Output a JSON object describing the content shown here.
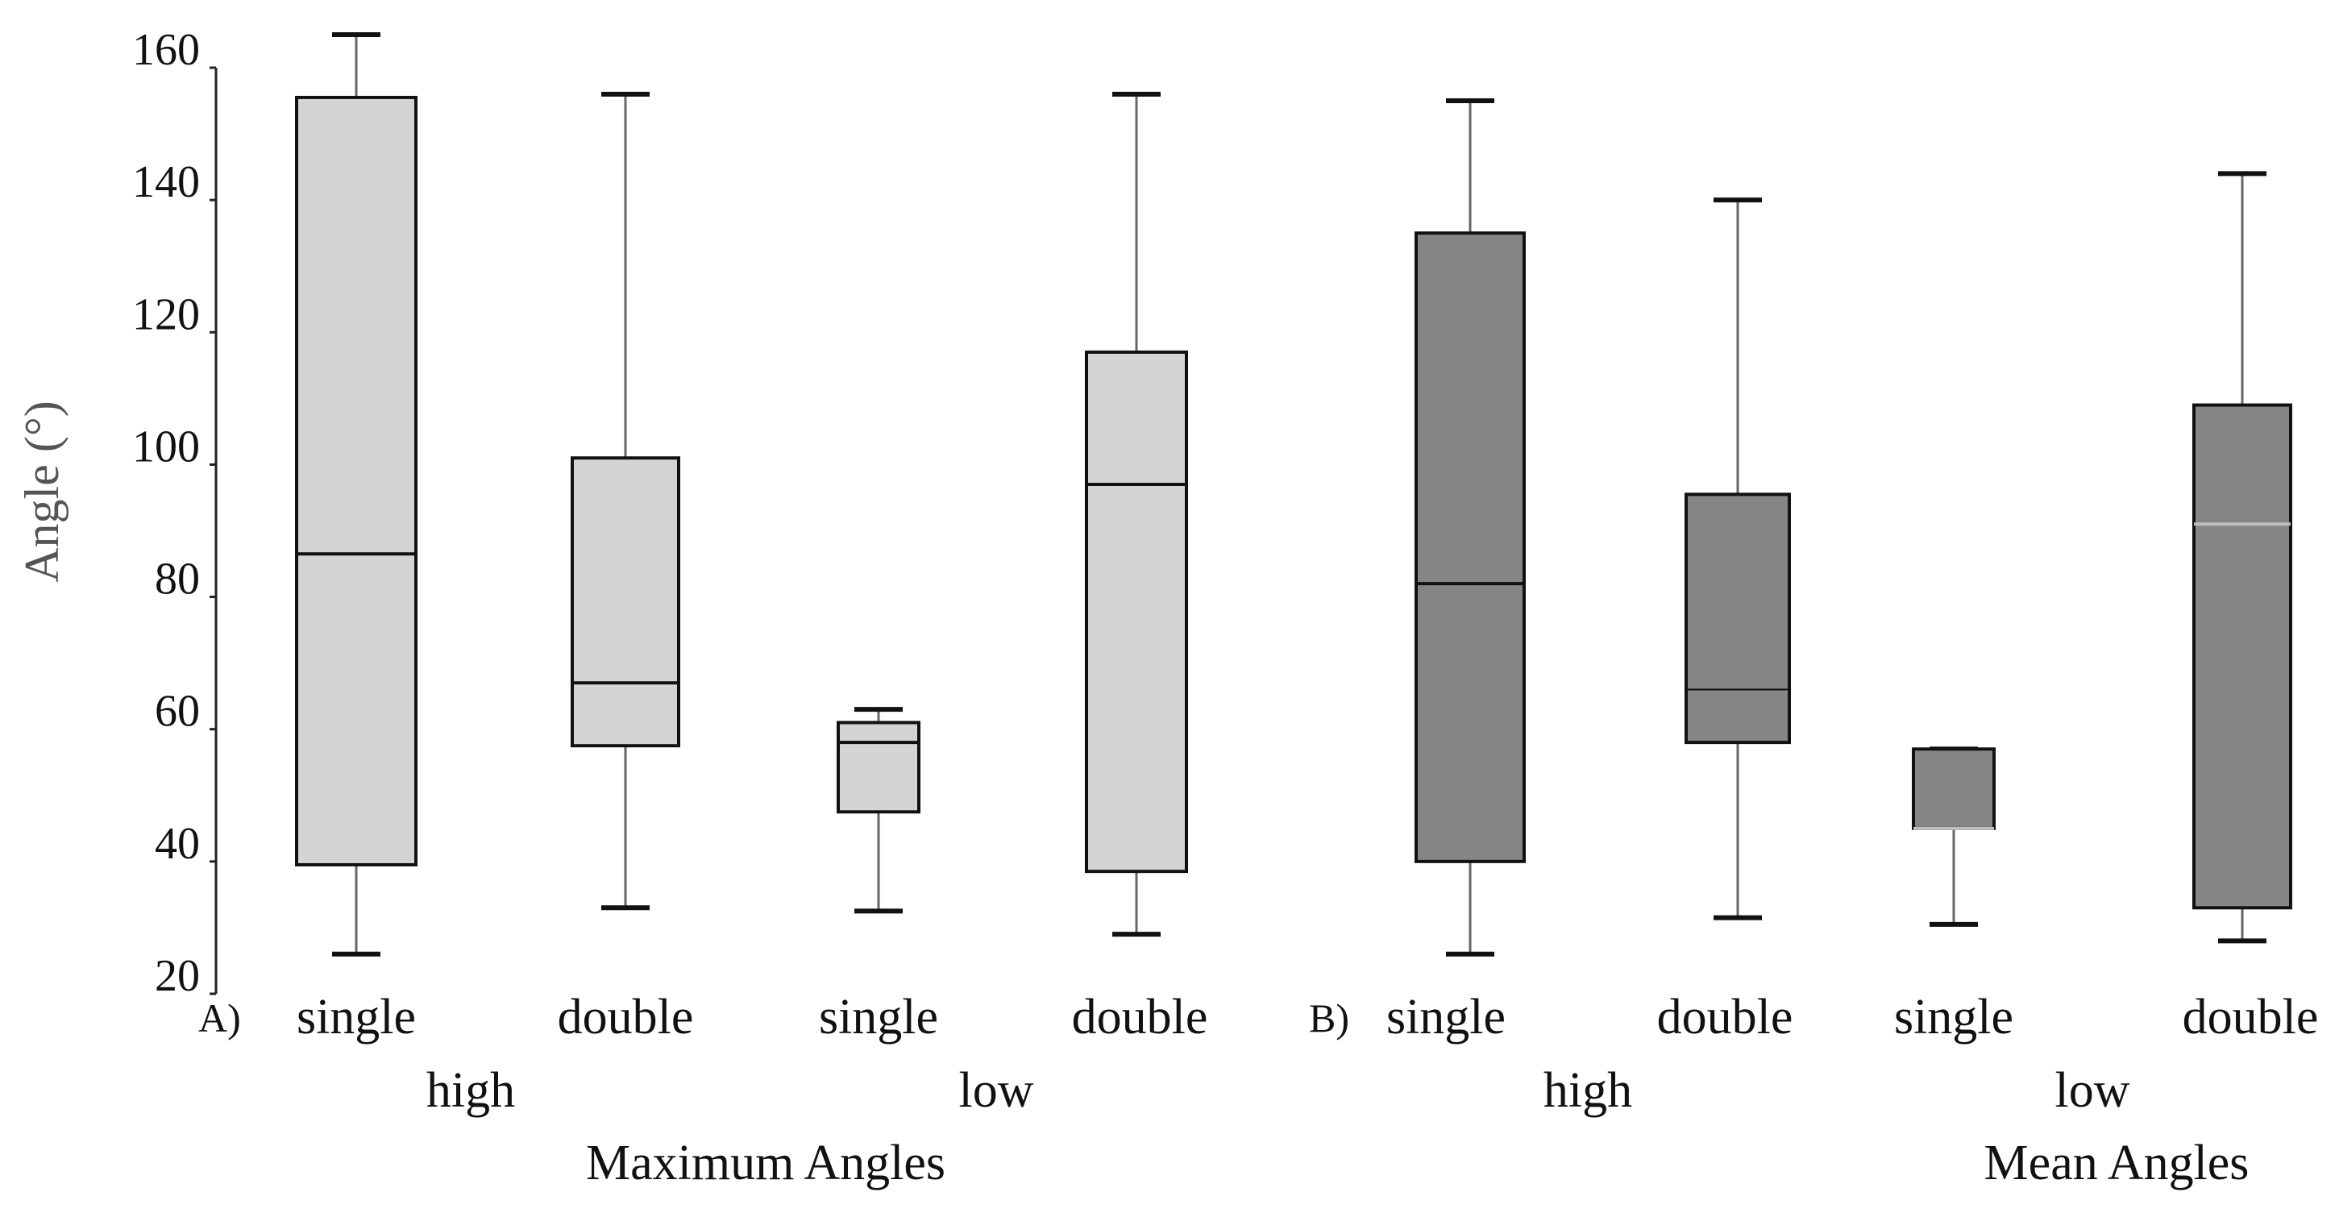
{
  "chart_data": {
    "type": "box",
    "ylabel": "Angle (°)",
    "ylim": [
      20,
      160
    ],
    "yticks": [
      20,
      40,
      60,
      80,
      100,
      120,
      140,
      160
    ],
    "legend": "none",
    "panels": [
      {
        "label": "A)",
        "title": "Maximum Angles",
        "fill": "#d4d4d4",
        "median_color": "#111111",
        "groups": [
          {
            "name": "high",
            "boxes": [
              {
                "category": "single",
                "min": 26,
                "q1": 39.5,
                "median": 86.5,
                "q3": 155.5,
                "max": 165
              },
              {
                "category": "double",
                "min": 33,
                "q1": 57.5,
                "median": 67,
                "q3": 101,
                "max": 156
              }
            ]
          },
          {
            "name": "low",
            "boxes": [
              {
                "category": "single",
                "min": 32.5,
                "q1": 47.5,
                "median": 58,
                "q3": 61,
                "max": 63
              },
              {
                "category": "double",
                "min": 29,
                "q1": 38.5,
                "median": 97,
                "q3": 117,
                "max": 156
              }
            ]
          }
        ]
      },
      {
        "label": "B)",
        "title": "Mean Angles",
        "fill": "#858585",
        "median_color": "#111111",
        "groups": [
          {
            "name": "high",
            "boxes": [
              {
                "category": "single",
                "min": 26,
                "q1": 40,
                "median": 82,
                "q3": 135,
                "max": 155
              },
              {
                "category": "double",
                "min": 31.5,
                "q1": 58,
                "median": 66,
                "q3": 95.5,
                "max": 140
              }
            ]
          },
          {
            "name": "low",
            "boxes": [
              {
                "category": "single",
                "min": 30.5,
                "q1": 45,
                "median": 45,
                "q3": 57,
                "max": 57
              },
              {
                "category": "double",
                "min": 28,
                "q1": 33,
                "median": 91,
                "q3": 109,
                "max": 144
              }
            ]
          }
        ]
      }
    ]
  }
}
